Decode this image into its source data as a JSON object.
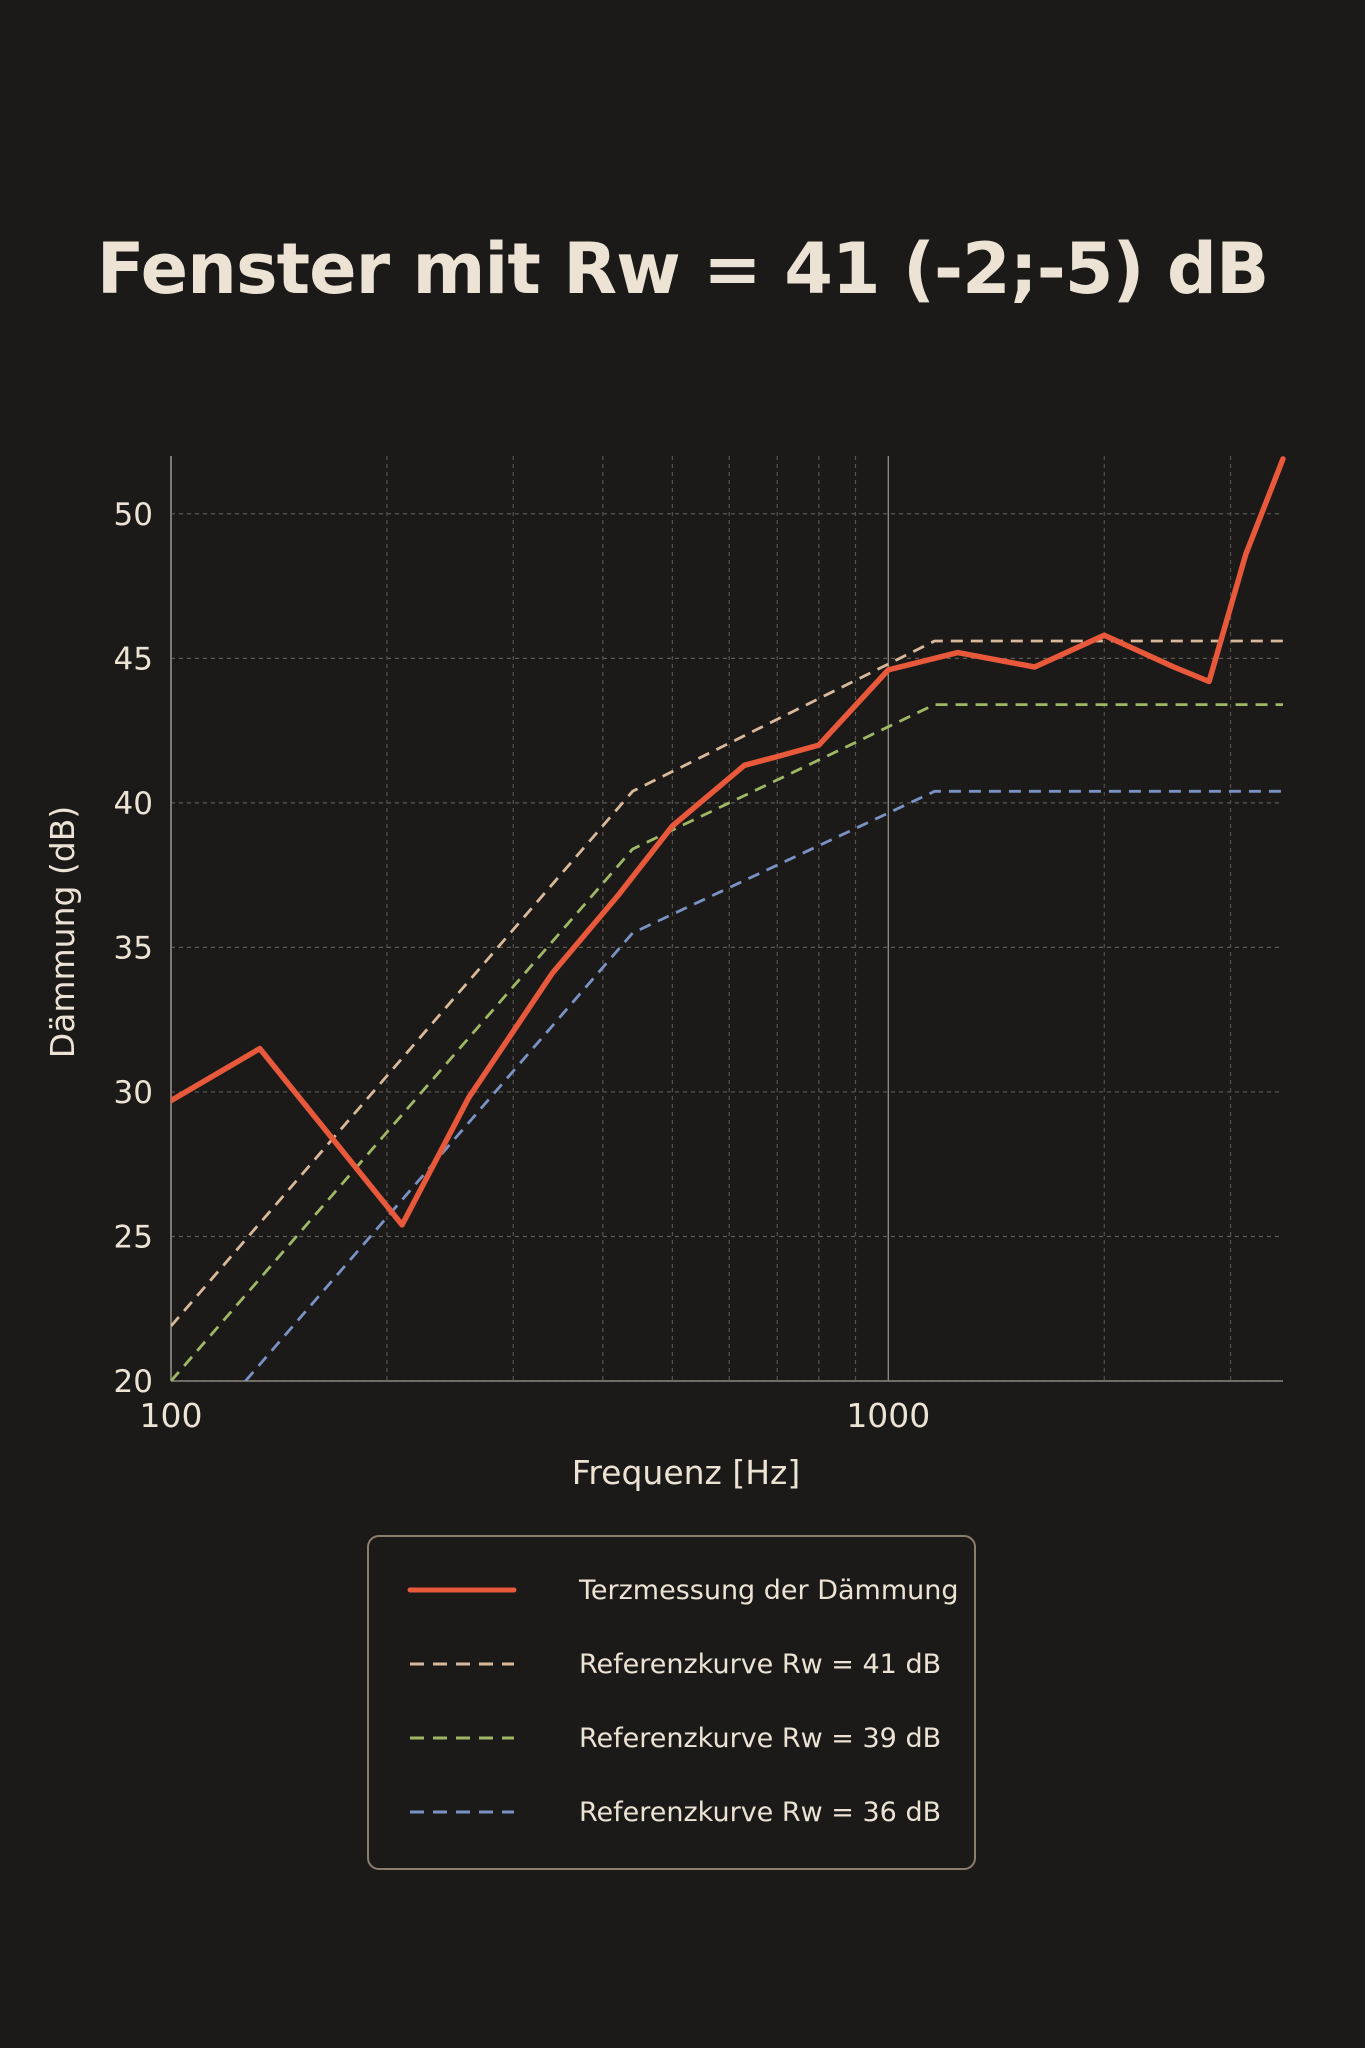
{
  "chart_data": {
    "type": "line",
    "title": "Fenster mit Rw = 41 (-2;-5) dB",
    "xlabel": "Frequenz [Hz]",
    "ylabel": "Dämmung (dB)",
    "x_scale": "log",
    "xlim": [
      100,
      3550
    ],
    "ylim": [
      20,
      52
    ],
    "x_ticks": [
      {
        "value": 100,
        "label": "100"
      },
      {
        "value": 1000,
        "label": "1000"
      }
    ],
    "y_ticks": [
      {
        "value": 20,
        "label": "20"
      },
      {
        "value": 25,
        "label": "25"
      },
      {
        "value": 30,
        "label": "30"
      },
      {
        "value": 35,
        "label": "35"
      },
      {
        "value": 40,
        "label": "40"
      },
      {
        "value": 45,
        "label": "45"
      },
      {
        "value": 50,
        "label": "50"
      }
    ],
    "grid": true,
    "legend_position": "bottom",
    "series": [
      {
        "name": "Terzmessung der Dämmung",
        "color": "#e8583a",
        "style": "solid",
        "x": [
          100,
          133,
          210,
          260,
          340,
          420,
          500,
          630,
          700,
          800,
          1000,
          1250,
          1600,
          2000,
          2500,
          2800,
          3150,
          3550
        ],
        "y": [
          29.7,
          31.5,
          25.4,
          29.8,
          34.1,
          36.8,
          39.2,
          41.3,
          41.6,
          42.0,
          44.6,
          45.2,
          44.7,
          45.8,
          44.7,
          44.2,
          48.6,
          51.9
        ]
      },
      {
        "name": "Referenzkurve Rw = 41 dB",
        "color": "#d9b99a",
        "style": "dashed",
        "x": [
          100,
          440,
          1160,
          3550
        ],
        "y": [
          21.9,
          40.4,
          45.6,
          45.6
        ]
      },
      {
        "name": "Referenzkurve Rw = 39 dB",
        "color": "#9fb865",
        "style": "dashed",
        "x": [
          100,
          440,
          1160,
          3550
        ],
        "y": [
          20.0,
          38.4,
          43.4,
          43.4
        ]
      },
      {
        "name": "Referenzkurve Rw = 36 dB",
        "color": "#7a92c4",
        "style": "dashed",
        "x": [
          127,
          440,
          1160,
          3550
        ],
        "y": [
          20.0,
          35.5,
          40.4,
          40.4
        ]
      }
    ]
  }
}
